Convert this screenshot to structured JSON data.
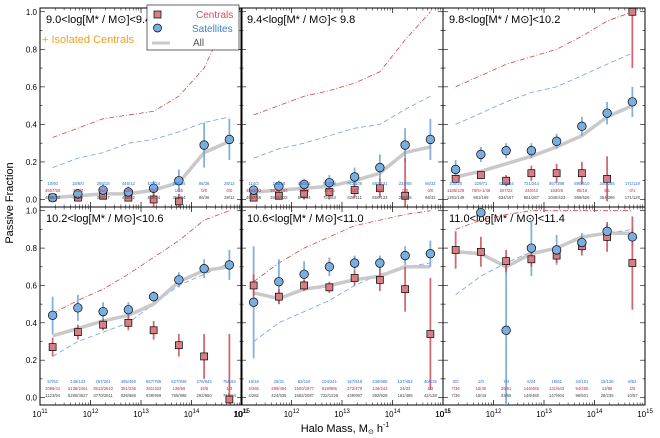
{
  "figure": {
    "ylabel": "Passive Fraction",
    "xlabel": "Halo Mass, M",
    "xlabel_sub": "⊙",
    "xlabel_unit": " h",
    "xlabel_exp": "-1",
    "isolated_note": "+ Isolated Centrals",
    "legend": {
      "centrals": "Centrals",
      "satellites": "Satellites",
      "all": "All"
    },
    "x_ticks": [
      {
        "base": "10",
        "exp": "11"
      },
      {
        "base": "10",
        "exp": "12"
      },
      {
        "base": "10",
        "exp": "13"
      },
      {
        "base": "10",
        "exp": "14"
      },
      {
        "base": "10",
        "exp": "15"
      }
    ],
    "y_ticks": [
      "0.0",
      "0.2",
      "0.4",
      "0.6",
      "0.8",
      "1.0"
    ],
    "colors": {
      "centrals": "#c8505a",
      "satellites": "#6ea3d8",
      "all": "#c9c9c9",
      "cen_face": "#d77e86",
      "sat_face": "#7aaee0",
      "isolated": "#f0a11e",
      "count_sat": "#2f6fc7",
      "count_cen": "#c8283a",
      "count_all": "#444444"
    }
  },
  "chart_data": [
    {
      "type": "scatter",
      "title": "9.0<log[M* / M⊙]<9.4",
      "xlim": [
        11,
        15
      ],
      "ylim": [
        -0.04,
        1.02
      ],
      "x": [
        11.25,
        11.75,
        12.25,
        12.75,
        13.25,
        13.75,
        14.25,
        14.75
      ],
      "series": [
        {
          "name": "All",
          "values": [
            0.01,
            0.02,
            0.03,
            0.03,
            0.05,
            0.09,
            0.25,
            0.31
          ]
        },
        {
          "name": "Centrals",
          "values": [
            0.01,
            0.01,
            0.02,
            0.01,
            0.0,
            -0.01,
            null,
            null
          ],
          "err": [
            0.01,
            0.01,
            0.02,
            0.01,
            0.05,
            0.04,
            null,
            null
          ]
        },
        {
          "name": "Satellites",
          "values": [
            0.01,
            0.03,
            0.05,
            0.04,
            0.06,
            0.1,
            0.29,
            0.32
          ],
          "err": [
            0.01,
            0.02,
            0.03,
            0.03,
            0.04,
            0.06,
            0.12,
            0.11
          ]
        },
        {
          "name": "Isolated Centrals upper",
          "values": [
            0.33,
            0.38,
            0.43,
            0.45,
            0.47,
            0.55,
            0.7,
            0.99
          ]
        },
        {
          "name": "Isolated Centrals lower",
          "values": [
            0.17,
            0.22,
            0.25,
            0.3,
            0.32,
            0.36,
            0.41,
            0.44
          ]
        }
      ],
      "counts": {
        "sat": [
          "10/60",
          "18/6/0",
          "288/18",
          "446/12",
          "437/24",
          "235/34",
          "86/36",
          "28/12"
        ],
        "cen": [
          "4557/50",
          "355/3",
          "61/1",
          "53/6",
          "22/1",
          "1/35",
          "0/0",
          "0/0"
        ],
        "all": [
          "4665/50",
          "461/9",
          "349/17",
          "488/12",
          "458/24",
          "312/34",
          "86/36",
          "28/12"
        ]
      }
    },
    {
      "type": "scatter",
      "title": "9.4<log[M* / M⊙]< 9.8",
      "xlim": [
        11,
        15
      ],
      "ylim": [
        -0.04,
        1.02
      ],
      "x": [
        11.25,
        11.75,
        12.25,
        12.75,
        13.25,
        13.75,
        14.25,
        14.75
      ],
      "series": [
        {
          "name": "All",
          "values": [
            0.04,
            0.05,
            0.06,
            0.07,
            0.1,
            0.14,
            0.25,
            0.28
          ]
        },
        {
          "name": "Centrals",
          "values": [
            0.01,
            0.02,
            0.03,
            0.04,
            0.05,
            0.06,
            0.02,
            null
          ],
          "err": [
            0.01,
            0.02,
            0.03,
            0.04,
            0.04,
            0.05,
            0.2,
            null
          ]
        },
        {
          "name": "Satellites",
          "values": [
            0.05,
            0.07,
            0.08,
            0.09,
            0.12,
            0.17,
            0.29,
            0.32
          ],
          "err": [
            0.02,
            0.03,
            0.03,
            0.04,
            0.05,
            0.07,
            0.09,
            0.11
          ]
        },
        {
          "name": "Isolated Centrals upper",
          "values": [
            0.45,
            0.5,
            0.55,
            0.58,
            0.62,
            0.68,
            0.85,
            1.0
          ]
        },
        {
          "name": "Isolated Centrals lower",
          "values": [
            0.22,
            0.27,
            0.3,
            0.34,
            0.38,
            0.4,
            0.48,
            0.55
          ]
        }
      ],
      "counts": {
        "sat": [
          "114/3",
          "246/18",
          "456/31",
          "674/58",
          "763/106",
          "692/131",
          "234/68",
          "66/32"
        ],
        "cen": [
          "4543/63",
          "3636/164",
          "114/3",
          "17/15",
          "63/3",
          "48/2",
          "0/0",
          "0/0"
        ],
        "all": [
          "4657/66",
          "3882/122",
          "570/34",
          "791/63",
          "826/111",
          "650/133",
          "239/88",
          "66/32"
        ]
      }
    },
    {
      "type": "scatter",
      "title": "9.8<log[M* / M⊙]<10.2",
      "xlim": [
        11,
        15
      ],
      "ylim": [
        -0.04,
        1.02
      ],
      "x": [
        11.25,
        11.75,
        12.25,
        12.75,
        13.25,
        13.75,
        14.25,
        14.75
      ],
      "series": [
        {
          "name": "All",
          "values": [
            0.12,
            0.15,
            0.19,
            0.23,
            0.28,
            0.34,
            0.44,
            0.5
          ]
        },
        {
          "name": "Centrals",
          "values": [
            0.11,
            0.13,
            0.1,
            0.14,
            0.14,
            0.14,
            0.11,
            1.0
          ],
          "err": [
            0.02,
            0.02,
            0.03,
            0.04,
            0.05,
            0.06,
            0.12,
            0.3
          ]
        },
        {
          "name": "Satellites",
          "values": [
            0.16,
            0.24,
            0.26,
            0.26,
            0.31,
            0.39,
            0.46,
            0.52
          ],
          "err": [
            0.05,
            0.04,
            0.04,
            0.04,
            0.04,
            0.05,
            0.06,
            0.08
          ]
        },
        {
          "name": "Isolated Centrals upper",
          "values": [
            0.6,
            0.66,
            0.72,
            0.76,
            0.8,
            0.87,
            0.95,
            1.0
          ]
        },
        {
          "name": "Isolated Centrals lower",
          "values": [
            0.4,
            0.46,
            0.52,
            0.57,
            0.6,
            0.66,
            0.72,
            0.78
          ]
        }
      ],
      "counts": {
        "sat": [
          "105/20",
          "229/71",
          "427/134",
          "721/244",
          "867/398",
          "890/510",
          "346/285",
          "171/119"
        ],
        "cen": [
          "1186/129",
          "76/5+1/46",
          "207/22",
          "240/43",
          "163/25",
          "85/16",
          "8/1",
          "0/1"
        ],
        "all": [
          "1291/149",
          "981/169",
          "634/167",
          "961/287",
          "1040/423",
          "958/526",
          "354/286",
          "171/120"
        ]
      }
    },
    {
      "type": "scatter",
      "title": "10.2<log[M* / M⊙]<10.6",
      "xlim": [
        11,
        15
      ],
      "ylim": [
        -0.04,
        1.02
      ],
      "x": [
        11.25,
        11.75,
        12.25,
        12.75,
        13.25,
        13.75,
        14.25,
        14.75
      ],
      "series": [
        {
          "name": "All",
          "values": [
            0.33,
            0.37,
            0.41,
            0.44,
            0.5,
            0.62,
            0.68,
            0.7
          ]
        },
        {
          "name": "Centrals",
          "values": [
            0.27,
            0.35,
            0.39,
            0.4,
            0.36,
            0.28,
            0.22,
            -0.01
          ],
          "err": [
            0.05,
            0.04,
            0.03,
            0.04,
            0.05,
            0.06,
            0.12,
            0.35
          ]
        },
        {
          "name": "Satellites",
          "values": [
            0.44,
            0.48,
            0.46,
            0.47,
            0.54,
            0.63,
            0.69,
            0.71
          ],
          "err": [
            0.1,
            0.07,
            0.05,
            0.04,
            0.03,
            0.04,
            0.05,
            0.08
          ]
        },
        {
          "name": "Isolated Centrals upper",
          "values": [
            0.45,
            0.52,
            0.58,
            0.66,
            0.75,
            0.84,
            0.95,
            1.0
          ]
        },
        {
          "name": "Isolated Centrals lower",
          "values": [
            0.22,
            0.3,
            0.35,
            0.4,
            0.5,
            0.6,
            0.66,
            0.72
          ]
        }
      ],
      "counts": {
        "sat": [
          "57/53",
          "148/133",
          "257/201",
          "485/450",
          "657/786",
          "627/849",
          "276/644",
          "75/194"
        ],
        "cen": [
          "1066/41",
          "5138/2461",
          "3513/2610",
          "351/236",
          "281/163",
          "138/58",
          "16/6",
          "1/3"
        ],
        "all": [
          "1123/94",
          "5286/3627",
          "3770/2811",
          "836/686",
          "938/959",
          "765/898",
          "292/650",
          "76/194"
        ]
      }
    },
    {
      "type": "scatter",
      "title": "10.6<log[M* / M⊙]<11.0",
      "xlim": [
        11,
        15
      ],
      "ylim": [
        -0.04,
        1.02
      ],
      "x": [
        11.25,
        11.75,
        12.25,
        12.75,
        13.25,
        13.75,
        14.25,
        14.75
      ],
      "series": [
        {
          "name": "All",
          "values": [
            0.56,
            0.53,
            0.58,
            0.6,
            0.63,
            0.65,
            0.7,
            0.7
          ]
        },
        {
          "name": "Centrals",
          "values": [
            0.6,
            0.54,
            0.6,
            0.59,
            0.64,
            0.63,
            0.58,
            0.34
          ],
          "err": [
            0.06,
            0.04,
            0.03,
            0.03,
            0.04,
            0.06,
            0.12,
            0.3
          ]
        },
        {
          "name": "Satellites",
          "values": [
            0.51,
            0.62,
            0.66,
            0.7,
            0.72,
            0.72,
            0.76,
            0.77
          ],
          "err": [
            0.3,
            0.12,
            0.07,
            0.05,
            0.04,
            0.04,
            0.05,
            0.07
          ]
        },
        {
          "name": "Isolated Centrals upper",
          "values": [
            0.62,
            0.72,
            0.8,
            0.86,
            0.92,
            0.95,
            0.98,
            1.0
          ]
        },
        {
          "name": "Isolated Centrals lower",
          "values": [
            0.3,
            0.4,
            0.46,
            0.52,
            0.6,
            0.66,
            0.7,
            0.72
          ]
        }
      ],
      "counts": {
        "sat": [
          "15/16",
          "25/31",
          "82/110",
          "104/241",
          "167/518",
          "246/686",
          "137/452",
          "40/135"
        ],
        "cen": [
          "4/266",
          "289/484",
          "1500/1977",
          "618/985",
          "272/479",
          "146/243",
          "24/33",
          "1/3"
        ],
        "all": [
          "4/282",
          "424/535",
          "1582/2087",
          "722/1226",
          "439/997",
          "392/929",
          "161/485",
          "42/138"
        ]
      }
    },
    {
      "type": "scatter",
      "title": "11.0<log[M* / M⊙]<11.4",
      "xlim": [
        11,
        15
      ],
      "ylim": [
        -0.04,
        1.02
      ],
      "x": [
        11.25,
        11.75,
        12.25,
        12.75,
        13.25,
        13.75,
        14.25,
        14.75
      ],
      "series": [
        {
          "name": "All",
          "values": [
            0.78,
            0.77,
            0.7,
            0.77,
            0.8,
            0.86,
            0.88,
            0.88
          ]
        },
        {
          "name": "Centrals",
          "values": [
            0.79,
            0.78,
            0.73,
            0.74,
            0.76,
            0.81,
            0.86,
            0.72
          ],
          "err": [
            0.1,
            0.08,
            0.06,
            0.04,
            0.04,
            0.05,
            0.08,
            0.25
          ]
        },
        {
          "name": "Satellites",
          "values": [
            null,
            0.99,
            0.36,
            0.8,
            0.79,
            0.83,
            0.89,
            0.86
          ],
          "err": [
            null,
            0.02,
            0.4,
            0.15,
            0.08,
            0.05,
            0.04,
            0.05
          ]
        },
        {
          "name": "Isolated Centrals upper",
          "values": [
            0.9,
            0.95,
            0.98,
            1.0,
            1.0,
            1.0,
            1.0,
            1.0
          ]
        },
        {
          "name": "Isolated Centrals lower",
          "values": [
            0.55,
            0.65,
            0.72,
            0.78,
            0.8,
            0.85,
            0.88,
            0.9
          ]
        }
      ],
      "counts": {
        "sat": [
          "0/0",
          "1/0",
          "7/4",
          "6/24",
          "16/61",
          "24/151",
          "15/136",
          "8/52"
        ],
        "cen": [
          "7/36",
          "15/40",
          "26/61",
          "146/456",
          "131/643",
          "54/250",
          "13/85",
          "2/5"
        ],
        "all": [
          "7/36",
          "15/43",
          "33/65",
          "148/480",
          "147/604",
          "96/501",
          "28/235",
          "10/57"
        ]
      }
    }
  ]
}
